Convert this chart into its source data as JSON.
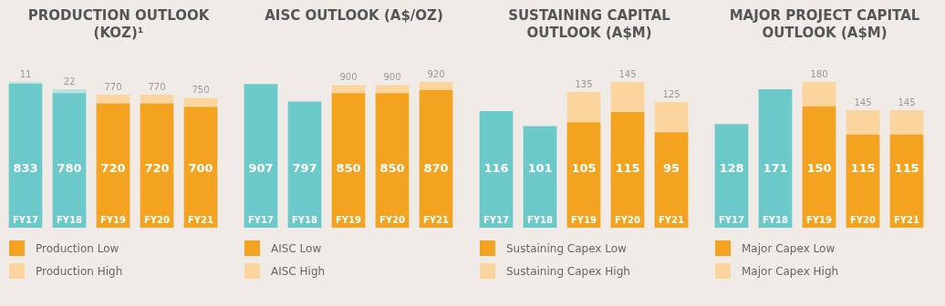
{
  "chart_data": [
    {
      "type": "bar",
      "title": "PRODUCTION OUTLOOK (KOZ)¹",
      "categories": [
        "FY17",
        "FY18",
        "FY19",
        "FY20",
        "FY21"
      ],
      "stacked": true,
      "legend": "bottom",
      "totals": [
        null,
        null,
        "770",
        "770",
        "750"
      ],
      "series": [
        {
          "name": "Production Low",
          "color": "#f4a321",
          "colors": [
            "#6cc9c9",
            "#6cc9c9",
            "#f4a321",
            "#f4a321",
            "#f4a321"
          ],
          "values": [
            833,
            780,
            720,
            720,
            700
          ],
          "value_labels": [
            "833",
            "780",
            "720",
            "720",
            "700"
          ]
        },
        {
          "name": "Production High",
          "color": "#fcd59e",
          "colors": [
            "#b8e4e2",
            "#b8e4e2",
            "#fcd59e",
            "#fcd59e",
            "#fcd59e"
          ],
          "values": [
            11,
            22,
            50,
            50,
            50
          ],
          "value_labels": [
            "11",
            "22",
            null,
            null,
            null
          ]
        }
      ]
    },
    {
      "type": "bar",
      "title": "AISC OUTLOOK (A$/OZ)",
      "categories": [
        "FY17",
        "FY18",
        "FY19",
        "FY20",
        "FY21"
      ],
      "stacked": true,
      "legend": "bottom",
      "totals": [
        null,
        null,
        "900",
        "900",
        "920"
      ],
      "series": [
        {
          "name": "AISC Low",
          "color": "#f4a321",
          "colors": [
            "#6cc9c9",
            "#6cc9c9",
            "#f4a321",
            "#f4a321",
            "#f4a321"
          ],
          "values": [
            907,
            797,
            850,
            850,
            870
          ],
          "value_labels": [
            "907",
            "797",
            "850",
            "850",
            "870"
          ]
        },
        {
          "name": "AISC High",
          "color": "#fcd59e",
          "values": [
            null,
            null,
            50,
            50,
            50
          ]
        }
      ]
    },
    {
      "type": "bar",
      "title": "SUSTAINING CAPITAL OUTLOOK (A$M)",
      "categories": [
        "FY17",
        "FY18",
        "FY19",
        "FY20",
        "FY21"
      ],
      "stacked": true,
      "legend": "bottom",
      "totals": [
        null,
        null,
        "135",
        "145",
        "125"
      ],
      "series": [
        {
          "name": "Sustaining Capex Low",
          "color": "#f4a321",
          "colors": [
            "#6cc9c9",
            "#6cc9c9",
            "#f4a321",
            "#f4a321",
            "#f4a321"
          ],
          "values": [
            116,
            101,
            105,
            115,
            95
          ],
          "value_labels": [
            "116",
            "101",
            "105",
            "115",
            "95"
          ]
        },
        {
          "name": "Sustaining Capex High",
          "color": "#fcd59e",
          "values": [
            null,
            null,
            30,
            30,
            30
          ]
        }
      ]
    },
    {
      "type": "bar",
      "title": "MAJOR PROJECT CAPITAL OUTLOOK (A$M)",
      "categories": [
        "FY17",
        "FY18",
        "FY19",
        "FY20",
        "FY21"
      ],
      "stacked": true,
      "legend": "bottom",
      "totals": [
        null,
        null,
        "180",
        "145",
        "145"
      ],
      "series": [
        {
          "name": "Major Capex Low",
          "color": "#f4a321",
          "colors": [
            "#6cc9c9",
            "#6cc9c9",
            "#f4a321",
            "#f4a321",
            "#f4a321"
          ],
          "values": [
            128,
            171,
            150,
            115,
            115
          ],
          "value_labels": [
            "128",
            "171",
            "150",
            "115",
            "115"
          ]
        },
        {
          "name": "Major Capex High",
          "color": "#fcd59e",
          "values": [
            null,
            null,
            30,
            30,
            30
          ]
        }
      ]
    }
  ]
}
